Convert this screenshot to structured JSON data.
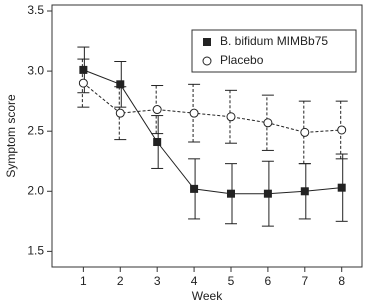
{
  "chart_data": {
    "type": "line",
    "x": [
      1,
      2,
      3,
      4,
      5,
      6,
      7,
      8
    ],
    "xlabel": "Week",
    "ylabel": "Symptom score",
    "xlim": [
      0.15,
      8.55
    ],
    "xticks": [
      1,
      2,
      3,
      4,
      5,
      6,
      7,
      8
    ],
    "ylim": [
      1.37,
      3.55
    ],
    "yticks": [
      {
        "value": 1.5,
        "label": "1.5"
      },
      {
        "value": 2,
        "label": "2.0"
      },
      {
        "value": 2.5,
        "label": "2.5"
      },
      {
        "value": 3,
        "label": "3.0"
      },
      {
        "value": 3.5,
        "label": "3.5"
      }
    ],
    "grid": false,
    "legend": "upper right",
    "series": [
      {
        "name": "B. bifidum MIMBb75",
        "color": "#222222",
        "marker": "square",
        "dashed": false,
        "values": [
          3.01,
          2.89,
          2.41,
          2.02,
          1.98,
          1.98,
          2.0,
          2.03
        ],
        "error": [
          0.19,
          0.19,
          0.22,
          0.25,
          0.25,
          0.27,
          0.23,
          0.28
        ]
      },
      {
        "name": "Placebo",
        "color": "#222222",
        "marker": "open-circle",
        "dashed": true,
        "values": [
          2.9,
          2.65,
          2.68,
          2.65,
          2.62,
          2.57,
          2.49,
          2.51
        ],
        "error": [
          0.2,
          0.22,
          0.2,
          0.24,
          0.22,
          0.23,
          0.26,
          0.24
        ]
      }
    ]
  }
}
